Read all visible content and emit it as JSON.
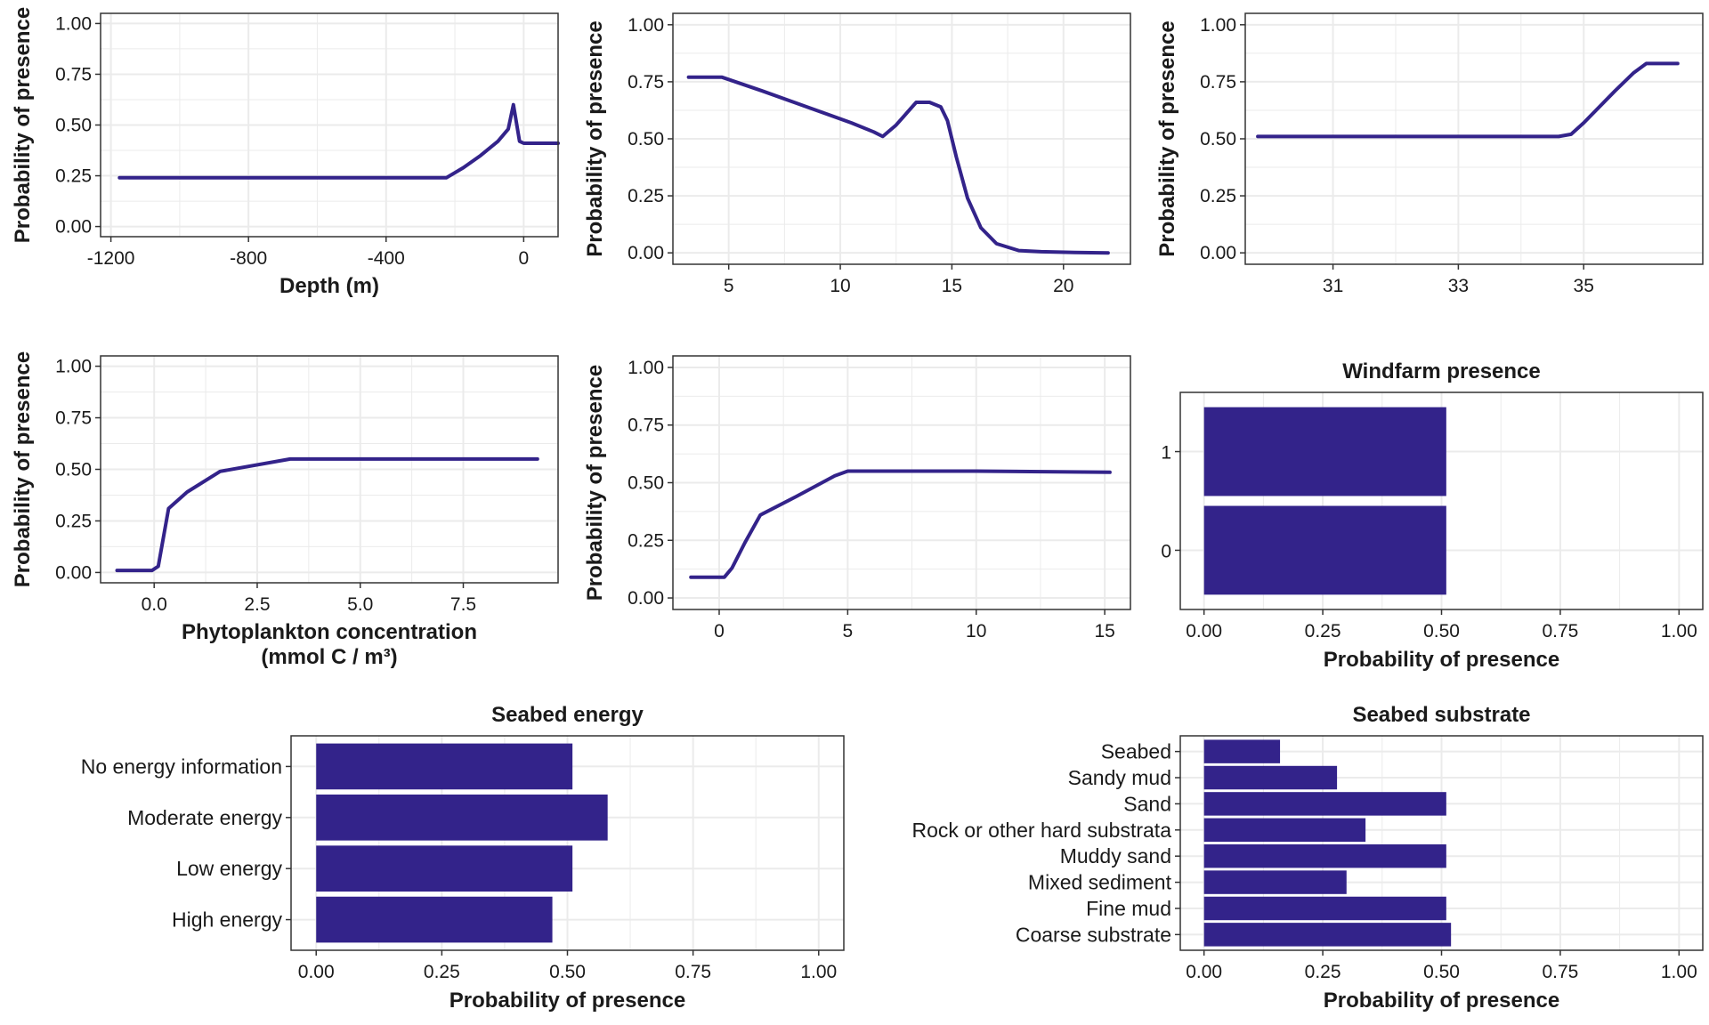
{
  "colors": {
    "series": "#33238a",
    "grid": "#ebebeb",
    "panel_border": "#333333",
    "text": "#1a1a1a",
    "background": "#ffffff"
  },
  "chart_data": [
    {
      "type": "line",
      "xlabel": "Depth (m)",
      "ylabel": "Probability of presence",
      "xlim": [
        -1230,
        100
      ],
      "ylim": [
        0,
        1
      ],
      "x_ticks": [
        -1200,
        -800,
        -400,
        0
      ],
      "x_tick_labels": [
        "-1200",
        "-800",
        "-400",
        "0"
      ],
      "y_ticks": [
        0,
        0.25,
        0.5,
        0.75,
        1
      ],
      "y_tick_labels": [
        "0.00",
        "0.25",
        "0.50",
        "0.75",
        "1.00"
      ],
      "grid": true,
      "x": [
        -1175,
        -225,
        -175,
        -125,
        -75,
        -45,
        -30,
        -12,
        0,
        100
      ],
      "y": [
        0.24,
        0.24,
        0.29,
        0.35,
        0.42,
        0.48,
        0.6,
        0.42,
        0.41,
        0.41
      ]
    },
    {
      "type": "line",
      "xlabel": "",
      "ylabel": "Probability of presence",
      "xlim": [
        2.5,
        23
      ],
      "ylim": [
        0,
        1
      ],
      "x_ticks": [
        5,
        10,
        15,
        20
      ],
      "x_tick_labels": [
        "5",
        "10",
        "15",
        "20"
      ],
      "y_ticks": [
        0,
        0.25,
        0.5,
        0.75,
        1
      ],
      "y_tick_labels": [
        "0.00",
        "0.25",
        "0.50",
        "0.75",
        "1.00"
      ],
      "grid": true,
      "x": [
        3.2,
        4.7,
        6.5,
        8.5,
        10.5,
        11.5,
        11.9,
        12.5,
        13.4,
        14.0,
        14.5,
        14.8,
        15.2,
        15.7,
        16.3,
        17.0,
        18.0,
        19.0,
        20.5,
        22.0
      ],
      "y": [
        0.77,
        0.77,
        0.71,
        0.64,
        0.57,
        0.53,
        0.51,
        0.56,
        0.66,
        0.66,
        0.64,
        0.58,
        0.42,
        0.24,
        0.11,
        0.04,
        0.01,
        0.005,
        0.002,
        0.0
      ]
    },
    {
      "type": "line",
      "xlabel": "",
      "ylabel": "Probability of presence",
      "xlim": [
        29.6,
        36.9
      ],
      "ylim": [
        0,
        1
      ],
      "x_ticks": [
        31,
        33,
        35
      ],
      "x_tick_labels": [
        "31",
        "33",
        "35"
      ],
      "y_ticks": [
        0,
        0.25,
        0.5,
        0.75,
        1
      ],
      "y_tick_labels": [
        "0.00",
        "0.25",
        "0.50",
        "0.75",
        "1.00"
      ],
      "grid": true,
      "x": [
        29.8,
        34.6,
        34.8,
        35.0,
        35.5,
        35.8,
        36.0,
        36.5
      ],
      "y": [
        0.51,
        0.51,
        0.52,
        0.57,
        0.71,
        0.79,
        0.83,
        0.83
      ]
    },
    {
      "type": "line",
      "xlabel": "Phytoplankton concentration\n(mmol C / m³)",
      "ylabel": "Probability of presence",
      "xlim": [
        -1.3,
        9.8
      ],
      "ylim": [
        0,
        1
      ],
      "x_ticks": [
        0,
        2.5,
        5,
        7.5
      ],
      "x_tick_labels": [
        "0.0",
        "2.5",
        "5.0",
        "7.5"
      ],
      "y_ticks": [
        0,
        0.25,
        0.5,
        0.75,
        1
      ],
      "y_tick_labels": [
        "0.00",
        "0.25",
        "0.50",
        "0.75",
        "1.00"
      ],
      "grid": true,
      "x": [
        -0.9,
        -0.05,
        0.1,
        0.35,
        0.8,
        1.6,
        3.3,
        5.0,
        7.5,
        9.3
      ],
      "y": [
        0.01,
        0.01,
        0.03,
        0.31,
        0.39,
        0.49,
        0.55,
        0.55,
        0.55,
        0.55
      ]
    },
    {
      "type": "line",
      "xlabel": "",
      "ylabel": "Probability of presence",
      "xlim": [
        -1.8,
        16
      ],
      "ylim": [
        0,
        1
      ],
      "x_ticks": [
        0,
        5,
        10,
        15
      ],
      "x_tick_labels": [
        "0",
        "5",
        "10",
        "15"
      ],
      "y_ticks": [
        0,
        0.25,
        0.5,
        0.75,
        1
      ],
      "y_tick_labels": [
        "0.00",
        "0.25",
        "0.50",
        "0.75",
        "1.00"
      ],
      "grid": true,
      "x": [
        -1.1,
        0.2,
        0.5,
        1.0,
        1.6,
        3.0,
        4.5,
        5.0,
        10.0,
        15.2
      ],
      "y": [
        0.09,
        0.09,
        0.13,
        0.24,
        0.36,
        0.44,
        0.53,
        0.55,
        0.55,
        0.545
      ]
    },
    {
      "type": "bar",
      "orientation": "horizontal",
      "title": "Windfarm presence",
      "xlabel": "Probability of presence",
      "ylabel": "",
      "xlim": [
        -0.05,
        1.05
      ],
      "x_ticks": [
        0,
        0.25,
        0.5,
        0.75,
        1
      ],
      "x_tick_labels": [
        "0.00",
        "0.25",
        "0.50",
        "0.75",
        "1.00"
      ],
      "grid": true,
      "categories": [
        "1",
        "0"
      ],
      "values": [
        0.51,
        0.51
      ]
    },
    {
      "type": "bar",
      "orientation": "horizontal",
      "title": "Seabed energy",
      "xlabel": "Probability of presence",
      "ylabel": "",
      "xlim": [
        -0.05,
        1.05
      ],
      "x_ticks": [
        0,
        0.25,
        0.5,
        0.75,
        1
      ],
      "x_tick_labels": [
        "0.00",
        "0.25",
        "0.50",
        "0.75",
        "1.00"
      ],
      "grid": true,
      "categories": [
        "No energy information",
        "Moderate energy",
        "Low energy",
        "High energy"
      ],
      "values": [
        0.51,
        0.58,
        0.51,
        0.47
      ]
    },
    {
      "type": "bar",
      "orientation": "horizontal",
      "title": "Seabed substrate",
      "xlabel": "Probability of presence",
      "ylabel": "",
      "xlim": [
        -0.05,
        1.05
      ],
      "x_ticks": [
        0,
        0.25,
        0.5,
        0.75,
        1
      ],
      "x_tick_labels": [
        "0.00",
        "0.25",
        "0.50",
        "0.75",
        "1.00"
      ],
      "grid": true,
      "categories": [
        "Seabed",
        "Sandy mud",
        "Sand",
        "Rock or other hard substrata",
        "Muddy sand",
        "Mixed sediment",
        "Fine mud",
        "Coarse substrate"
      ],
      "values": [
        0.16,
        0.28,
        0.51,
        0.34,
        0.51,
        0.3,
        0.51,
        0.52
      ]
    }
  ]
}
